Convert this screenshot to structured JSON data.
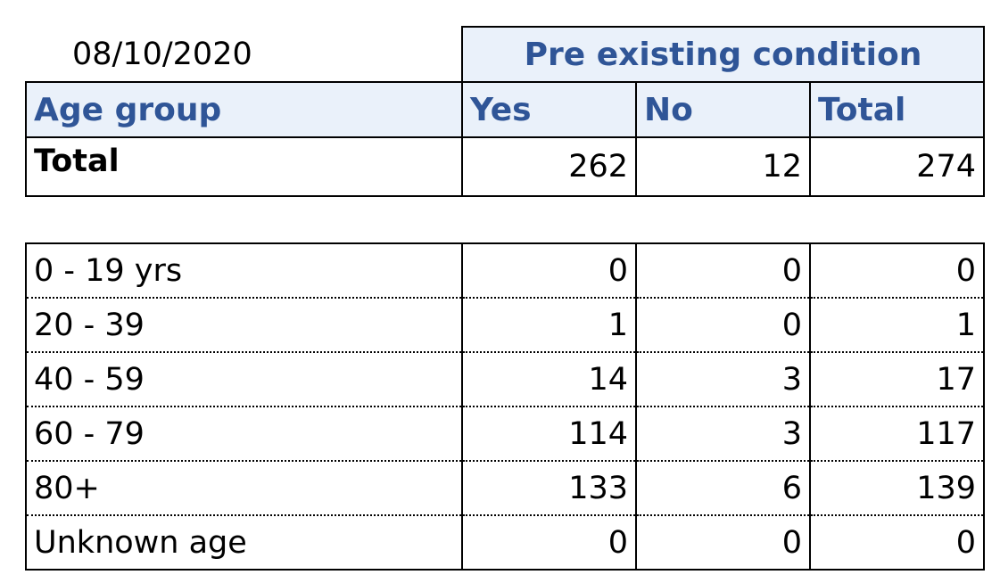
{
  "date": "08/10/2020",
  "group_header": "Pre existing condition",
  "columns": {
    "age_group": "Age group",
    "yes": "Yes",
    "no": "No",
    "total": "Total"
  },
  "total_row": {
    "label": "Total",
    "yes": "262",
    "no": "12",
    "total": "274"
  },
  "age_rows": [
    {
      "label": "0 - 19 yrs",
      "yes": "0",
      "no": "0",
      "total": "0"
    },
    {
      "label": "20 - 39",
      "yes": "1",
      "no": "0",
      "total": "1"
    },
    {
      "label": "40 - 59",
      "yes": "14",
      "no": "3",
      "total": "17"
    },
    {
      "label": "60 - 79",
      "yes": "114",
      "no": "3",
      "total": "117"
    },
    {
      "label": "80+",
      "yes": "133",
      "no": "6",
      "total": "139"
    },
    {
      "label": "Unknown age",
      "yes": "0",
      "no": "0",
      "total": "0"
    }
  ],
  "colors": {
    "header_background": "#eaf1fa",
    "header_text": "#2f5597"
  }
}
